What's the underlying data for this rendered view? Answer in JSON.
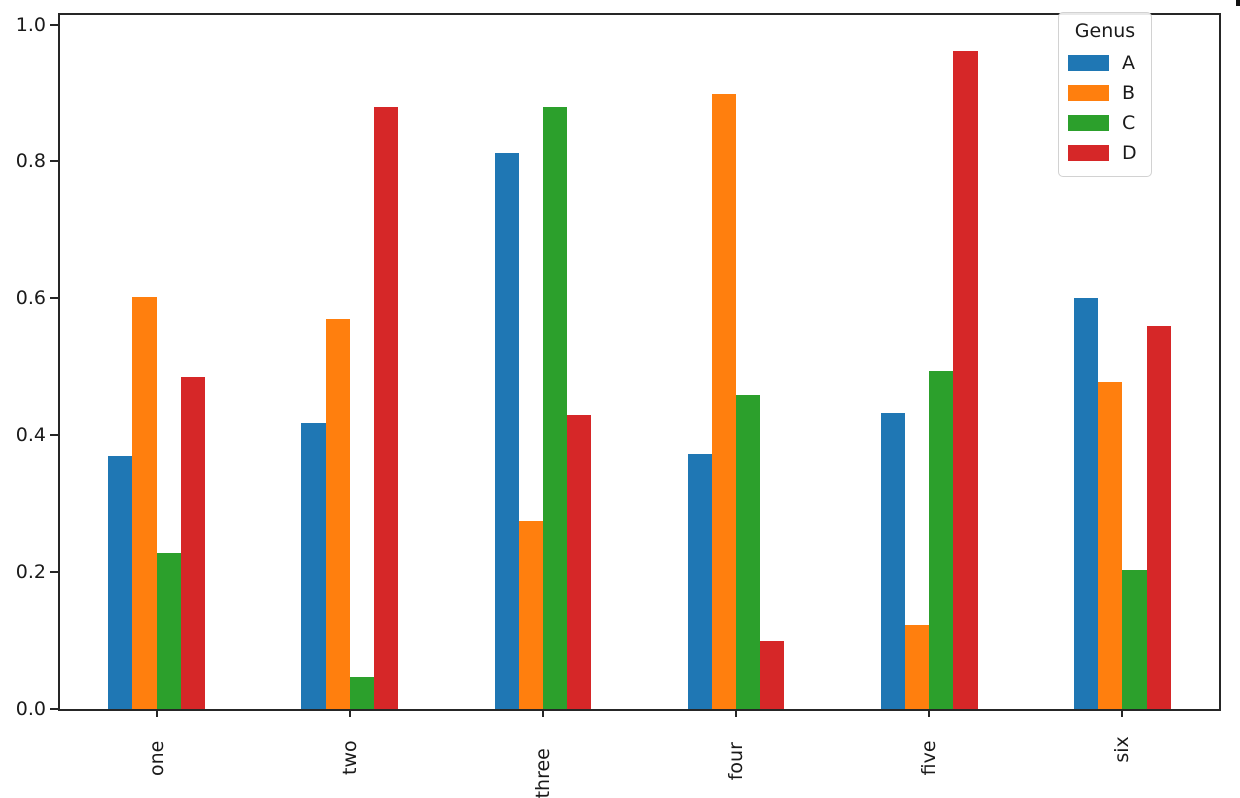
{
  "figure": {
    "background": "#ffffff",
    "spine_color": "#262626",
    "text_color": "#1a1a1a"
  },
  "chart_data": {
    "type": "bar",
    "title": "",
    "xlabel": "",
    "ylabel": "",
    "grid": false,
    "categories": [
      "one",
      "two",
      "three",
      "four",
      "five",
      "six"
    ],
    "series": [
      {
        "name": "A",
        "color": "#1f77b4",
        "values": [
          0.37,
          0.418,
          0.813,
          0.373,
          0.433,
          0.601
        ]
      },
      {
        "name": "B",
        "color": "#ff7f0e",
        "values": [
          0.602,
          0.57,
          0.275,
          0.898,
          0.123,
          0.478
        ]
      },
      {
        "name": "C",
        "color": "#2ca02c",
        "values": [
          0.228,
          0.047,
          0.879,
          0.459,
          0.494,
          0.203
        ]
      },
      {
        "name": "D",
        "color": "#d62728",
        "values": [
          0.485,
          0.88,
          0.43,
          0.099,
          0.962,
          0.56
        ]
      }
    ],
    "yticks": [
      "0.0",
      "0.2",
      "0.4",
      "0.6",
      "0.8",
      "1.0"
    ],
    "ylim": [
      0.0,
      1.0139
    ],
    "legend": {
      "title": "Genus",
      "position": "upper right"
    }
  }
}
